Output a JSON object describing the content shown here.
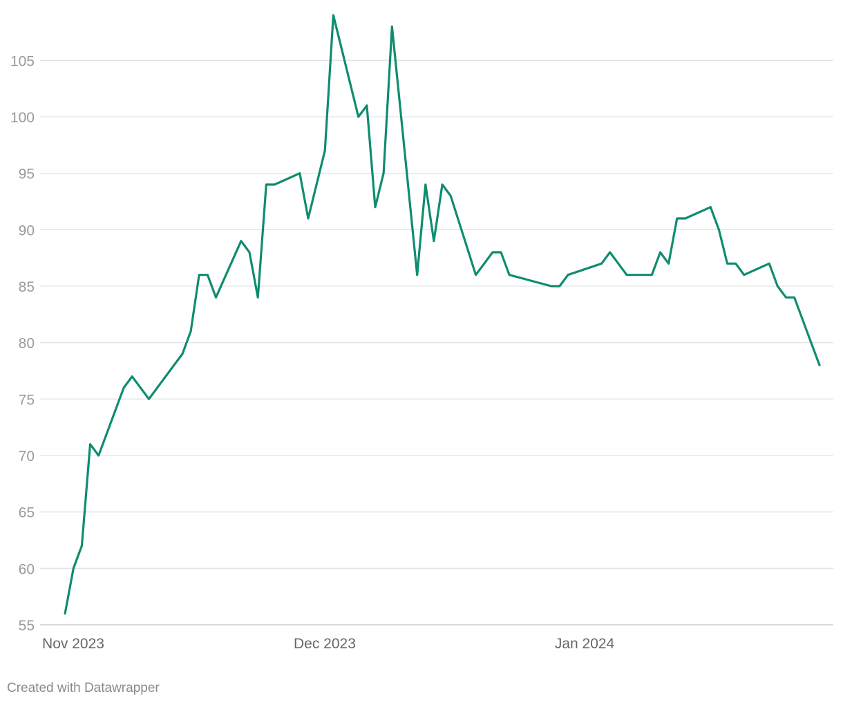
{
  "chart_data": {
    "type": "line",
    "title": "",
    "xlabel": "",
    "ylabel": "",
    "ylim": [
      55,
      109
    ],
    "xlim": [
      "2023-11-01",
      "2024-01-31"
    ],
    "grid": true,
    "y_ticks": [
      55,
      60,
      65,
      70,
      75,
      80,
      85,
      90,
      95,
      100,
      105
    ],
    "x_ticks": [
      {
        "date": "2023-11-01",
        "label": "Nov 2023"
      },
      {
        "date": "2023-12-01",
        "label": "Dec 2023"
      },
      {
        "date": "2024-01-01",
        "label": "Jan 2024"
      }
    ],
    "series": [
      {
        "color": "#0f8c6f",
        "points": [
          [
            "2023-11-02",
            56
          ],
          [
            "2023-11-03",
            60
          ],
          [
            "2023-11-04",
            62
          ],
          [
            "2023-11-05",
            71
          ],
          [
            "2023-11-06",
            70
          ],
          [
            "2023-11-09",
            76
          ],
          [
            "2023-11-10",
            77
          ],
          [
            "2023-11-12",
            75
          ],
          [
            "2023-11-16",
            79
          ],
          [
            "2023-11-17",
            81
          ],
          [
            "2023-11-18",
            86
          ],
          [
            "2023-11-19",
            86
          ],
          [
            "2023-11-20",
            84
          ],
          [
            "2023-11-23",
            89
          ],
          [
            "2023-11-24",
            88
          ],
          [
            "2023-11-25",
            84
          ],
          [
            "2023-11-26",
            94
          ],
          [
            "2023-11-27",
            94
          ],
          [
            "2023-11-30",
            95
          ],
          [
            "2023-12-01",
            91
          ],
          [
            "2023-12-03",
            97
          ],
          [
            "2023-12-04",
            109
          ],
          [
            "2023-12-07",
            100
          ],
          [
            "2023-12-08",
            101
          ],
          [
            "2023-12-09",
            92
          ],
          [
            "2023-12-10",
            95
          ],
          [
            "2023-12-11",
            108
          ],
          [
            "2023-12-14",
            86
          ],
          [
            "2023-12-15",
            94
          ],
          [
            "2023-12-16",
            89
          ],
          [
            "2023-12-17",
            94
          ],
          [
            "2023-12-18",
            93
          ],
          [
            "2023-12-21",
            86
          ],
          [
            "2023-12-23",
            88
          ],
          [
            "2023-12-24",
            88
          ],
          [
            "2023-12-25",
            86
          ],
          [
            "2023-12-30",
            85
          ],
          [
            "2023-12-31",
            85
          ],
          [
            "2024-01-01",
            86
          ],
          [
            "2024-01-05",
            87
          ],
          [
            "2024-01-06",
            88
          ],
          [
            "2024-01-08",
            86
          ],
          [
            "2024-01-11",
            86
          ],
          [
            "2024-01-12",
            88
          ],
          [
            "2024-01-13",
            87
          ],
          [
            "2024-01-14",
            91
          ],
          [
            "2024-01-15",
            91
          ],
          [
            "2024-01-18",
            92
          ],
          [
            "2024-01-19",
            90
          ],
          [
            "2024-01-20",
            87
          ],
          [
            "2024-01-21",
            87
          ],
          [
            "2024-01-22",
            86
          ],
          [
            "2024-01-25",
            87
          ],
          [
            "2024-01-26",
            85
          ],
          [
            "2024-01-27",
            84
          ],
          [
            "2024-01-28",
            84
          ],
          [
            "2024-01-29",
            82
          ],
          [
            "2024-01-31",
            78
          ]
        ]
      }
    ]
  },
  "footer": {
    "credit": "Created with Datawrapper"
  }
}
